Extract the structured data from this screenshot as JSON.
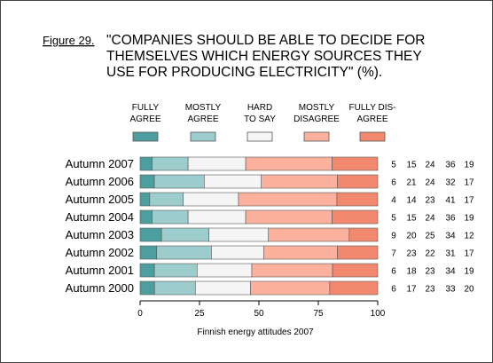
{
  "figure_label": "Figure 29.",
  "title_lines": [
    "\"COMPANIES SHOULD BE ABLE TO DECIDE FOR",
    "THEMSELVES WHICH ENERGY SOURCES THEY",
    "USE FOR PRODUCING ELECTRICITY\" (%)."
  ],
  "legend": [
    {
      "lines": [
        "FULLY",
        "AGREE"
      ],
      "color": "#4d9e9e"
    },
    {
      "lines": [
        "MOSTLY",
        "AGREE"
      ],
      "color": "#9ccccc"
    },
    {
      "lines": [
        "HARD",
        "TO SAY"
      ],
      "color": "#f5f5f5"
    },
    {
      "lines": [
        "MOSTLY",
        "DISAGREE"
      ],
      "color": "#fcb19f"
    },
    {
      "lines": [
        "FULLY DIS-",
        "AGREE"
      ],
      "color": "#f2896e"
    }
  ],
  "chart_data": {
    "type": "bar",
    "orientation": "horizontal",
    "stacked": true,
    "title": "\"COMPANIES SHOULD BE ABLE TO DECIDE FOR THEMSELVES WHICH ENERGY SOURCES THEY USE FOR PRODUCING ELECTRICITY\" (%).",
    "xlabel": "Finnish energy attitudes 2007",
    "ylabel": "",
    "xlim": [
      0,
      100
    ],
    "xticks": [
      "0",
      "25",
      "50",
      "75",
      "100"
    ],
    "grid": false,
    "categories": [
      "Autumn 2007",
      "Autumn 2006",
      "Autumn 2005",
      "Autumn 2004",
      "Autumn 2003",
      "Autumn 2002",
      "Autumn 2001",
      "Autumn 2000"
    ],
    "series": [
      {
        "name": "FULLY AGREE",
        "values": [
          5,
          6,
          4,
          5,
          9,
          7,
          6,
          6
        ]
      },
      {
        "name": "MOSTLY AGREE",
        "values": [
          15,
          21,
          14,
          15,
          20,
          23,
          18,
          17
        ]
      },
      {
        "name": "HARD TO SAY",
        "values": [
          24,
          24,
          23,
          24,
          25,
          22,
          23,
          23
        ]
      },
      {
        "name": "MOSTLY DISAGREE",
        "values": [
          36,
          32,
          41,
          36,
          34,
          31,
          34,
          33
        ]
      },
      {
        "name": "FULLY DIS-AGREE",
        "values": [
          19,
          17,
          17,
          19,
          12,
          17,
          19,
          20
        ]
      }
    ]
  }
}
